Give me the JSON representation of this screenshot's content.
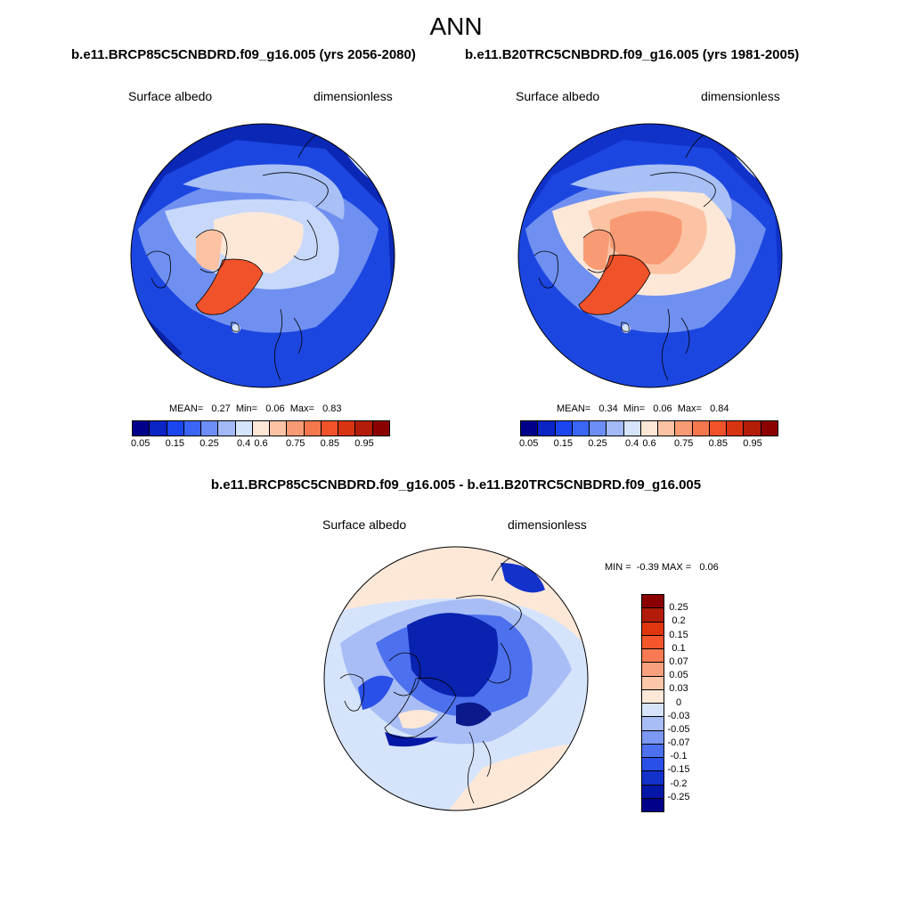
{
  "title": "ANN",
  "panels": [
    {
      "case_title": "b.e11.BRCP85C5CNBDRD.f09_g16.005 (yrs 2056-2080)",
      "variable": "Surface albedo",
      "units": "dimensionless",
      "stats": "MEAN=   0.27  Min=   0.06  Max=   0.83"
    },
    {
      "case_title": "b.e11.B20TRC5CNBDRD.f09_g16.005 (yrs 1981-2005)",
      "variable": "Surface albedo",
      "units": "dimensionless",
      "stats": "MEAN=   0.34  Min=   0.06  Max=   0.84"
    }
  ],
  "diff_panel": {
    "case_title": "b.e11.BRCP85C5CNBDRD.f09_g16.005 - b.e11.B20TRC5CNBDRD.f09_g16.005",
    "variable": "Surface albedo",
    "units": "dimensionless",
    "stats": "MIN =  -0.39 MAX =   0.06"
  },
  "colorbar_levels": [
    "0.05",
    "0.15",
    "0.25",
    "0.4",
    "0.6",
    "0.75",
    "0.85",
    "0.95"
  ],
  "colorbar_colors": [
    "#00008b",
    "#0b24c4",
    "#1a45ef",
    "#3b66f5",
    "#6c8ef6",
    "#a2b9f5",
    "#d6e4fb",
    "#fde6d6",
    "#fbc3a4",
    "#f89b74",
    "#f5774d",
    "#f0522a",
    "#d83412",
    "#b21c08",
    "#8b0000"
  ],
  "diff_levels": [
    "0.25",
    "0.2",
    "0.15",
    "0.1",
    "0.07",
    "0.05",
    "0.03",
    "0",
    "-0.03",
    "-0.05",
    "-0.07",
    "-0.1",
    "-0.15",
    "-0.2",
    "-0.25"
  ],
  "diff_colors": [
    "#8b0000",
    "#b21c08",
    "#e0360f",
    "#f5562b",
    "#f77a52",
    "#f9a07e",
    "#fbc7a8",
    "#fde8d8",
    "#d6e4fb",
    "#a8bdf5",
    "#7b98f2",
    "#4d70ee",
    "#2a50e8",
    "#1232c9",
    "#0517a6",
    "#00008b"
  ]
}
